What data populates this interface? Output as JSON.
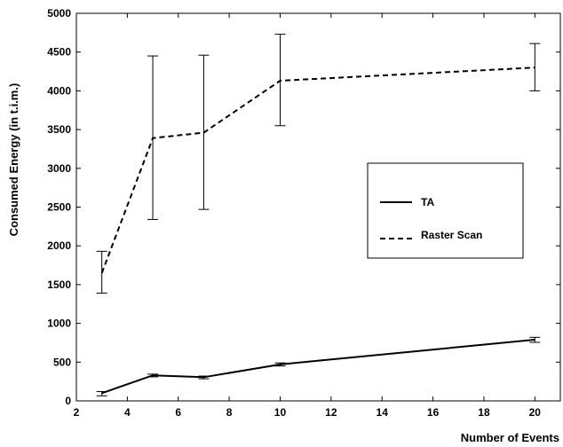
{
  "chart_data": {
    "type": "line",
    "xlabel": "Number of Events",
    "ylabel": "Consumed Energy (in t.i.m.)",
    "xlim": [
      2,
      21
    ],
    "ylim": [
      0,
      5000
    ],
    "xticks": [
      2,
      4,
      6,
      8,
      10,
      12,
      14,
      16,
      18,
      20
    ],
    "yticks": [
      0,
      500,
      1000,
      1500,
      2000,
      2500,
      3000,
      3500,
      4000,
      4500,
      5000
    ],
    "grid": false,
    "legend_position": "right",
    "x": [
      3,
      5,
      7,
      10,
      20
    ],
    "series": [
      {
        "name": "TA",
        "style": "solid",
        "color": "#000000",
        "values": [
          100,
          330,
          305,
          470,
          790
        ],
        "err_low": [
          65,
          310,
          285,
          450,
          755
        ],
        "err_high": [
          120,
          345,
          320,
          490,
          820
        ]
      },
      {
        "name": "Raster Scan",
        "style": "dashed",
        "color": "#000000",
        "values": [
          1650,
          3390,
          3460,
          4130,
          4300
        ],
        "err_low": [
          1390,
          2340,
          2470,
          3550,
          4000
        ],
        "err_high": [
          1930,
          4450,
          4460,
          4730,
          4610
        ]
      }
    ]
  }
}
